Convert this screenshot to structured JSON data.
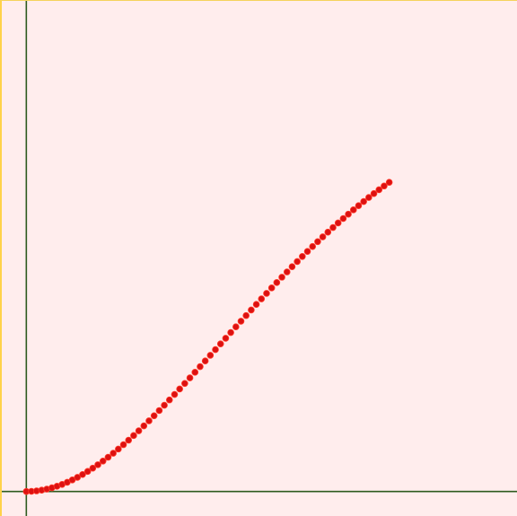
{
  "colors": {
    "background": "#ffeded",
    "frame": "#ffd24a",
    "axis": "#2d5a1e",
    "point": "#dd1111",
    "point_edge": "#ff3a2a"
  },
  "chart_data": {
    "type": "scatter",
    "title": "",
    "xlabel": "",
    "ylabel": "",
    "grid": false,
    "legend": "none",
    "xlim": [
      -0.1,
      2.0
    ],
    "ylim": [
      -0.1,
      2.0
    ],
    "series": [
      {
        "x": [
          0.0,
          0.0208,
          0.0417,
          0.0625,
          0.0833,
          0.1042,
          0.125,
          0.1458,
          0.1667,
          0.1875,
          0.2083,
          0.2292,
          0.25,
          0.2708,
          0.2917,
          0.3125,
          0.3333,
          0.3542,
          0.375,
          0.3958,
          0.4167,
          0.4375,
          0.4583,
          0.4792,
          0.5,
          0.5208,
          0.5417,
          0.5625,
          0.5833,
          0.6042,
          0.625,
          0.6458,
          0.6667,
          0.6875,
          0.7083,
          0.7292,
          0.75,
          0.7708,
          0.7917,
          0.8125,
          0.8333,
          0.8542,
          0.875,
          0.8958,
          0.9167,
          0.9375,
          0.9583,
          0.9792,
          1.0,
          1.0208,
          1.0417,
          1.0625,
          1.0833,
          1.1042,
          1.125,
          1.1458,
          1.1667,
          1.1875,
          1.2083,
          1.2292,
          1.25,
          1.2708,
          1.2917,
          1.3125,
          1.3333,
          1.3542,
          1.375,
          1.3958,
          1.4167,
          1.4375,
          1.4583,
          1.4792
        ],
        "y": [
          0.0,
          0.0006,
          0.0024,
          0.0054,
          0.0096,
          0.0149,
          0.0214,
          0.0289,
          0.0375,
          0.0471,
          0.0577,
          0.0692,
          0.0816,
          0.0949,
          0.109,
          0.1239,
          0.1396,
          0.156,
          0.173,
          0.1908,
          0.2091,
          0.228,
          0.2475,
          0.2675,
          0.2879,
          0.3087,
          0.3299,
          0.3515,
          0.3733,
          0.3955,
          0.4178,
          0.4404,
          0.4631,
          0.486,
          0.509,
          0.5321,
          0.5552,
          0.5784,
          0.6016,
          0.6248,
          0.648,
          0.6712,
          0.6942,
          0.7172,
          0.74,
          0.7627,
          0.7853,
          0.8077,
          0.8299,
          0.8518,
          0.8736,
          0.8951,
          0.9164,
          0.9374,
          0.9581,
          0.9786,
          0.9987,
          1.0185,
          1.038,
          1.0572,
          1.0761,
          1.0946,
          1.1128,
          1.1306,
          1.1481,
          1.1652,
          1.182,
          1.1984,
          1.2144,
          1.2301,
          1.2454,
          1.2604
        ]
      }
    ]
  }
}
